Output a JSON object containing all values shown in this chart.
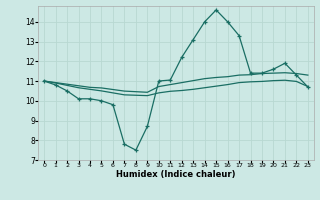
{
  "title": "",
  "xlabel": "Humidex (Indice chaleur)",
  "bg_color": "#cce8e4",
  "grid_color": "#b8d8d2",
  "line_color": "#1a6e64",
  "xlim": [
    -0.5,
    23.5
  ],
  "ylim": [
    7,
    14.8
  ],
  "yticks": [
    7,
    8,
    9,
    10,
    11,
    12,
    13,
    14
  ],
  "xticks": [
    0,
    1,
    2,
    3,
    4,
    5,
    6,
    7,
    8,
    9,
    10,
    11,
    12,
    13,
    14,
    15,
    16,
    17,
    18,
    19,
    20,
    21,
    22,
    23
  ],
  "line1_x": [
    0,
    1,
    2,
    3,
    4,
    5,
    6,
    7,
    8,
    9,
    10,
    11,
    12,
    13,
    14,
    15,
    16,
    17,
    18,
    19,
    20,
    21,
    22,
    23
  ],
  "line1_y": [
    11.0,
    10.8,
    10.5,
    10.1,
    10.1,
    10.0,
    9.8,
    7.8,
    7.5,
    8.7,
    11.0,
    11.05,
    12.2,
    13.1,
    14.0,
    14.6,
    14.0,
    13.3,
    11.4,
    11.4,
    11.6,
    11.9,
    11.3,
    10.7
  ],
  "line2_x": [
    0,
    1,
    2,
    3,
    4,
    5,
    6,
    7,
    8,
    9,
    10,
    11,
    12,
    13,
    14,
    15,
    16,
    17,
    18,
    19,
    20,
    21,
    22,
    23
  ],
  "line2_y": [
    11.0,
    10.92,
    10.84,
    10.76,
    10.68,
    10.65,
    10.57,
    10.49,
    10.46,
    10.43,
    10.72,
    10.82,
    10.92,
    11.02,
    11.12,
    11.18,
    11.22,
    11.3,
    11.32,
    11.38,
    11.4,
    11.42,
    11.38,
    11.3
  ],
  "line3_x": [
    0,
    1,
    2,
    3,
    4,
    5,
    6,
    7,
    8,
    9,
    10,
    11,
    12,
    13,
    14,
    15,
    16,
    17,
    18,
    19,
    20,
    21,
    22,
    23
  ],
  "line3_y": [
    11.0,
    10.9,
    10.78,
    10.66,
    10.58,
    10.5,
    10.4,
    10.3,
    10.28,
    10.26,
    10.4,
    10.48,
    10.52,
    10.58,
    10.66,
    10.74,
    10.82,
    10.92,
    10.96,
    10.98,
    11.02,
    11.04,
    10.98,
    10.72
  ]
}
